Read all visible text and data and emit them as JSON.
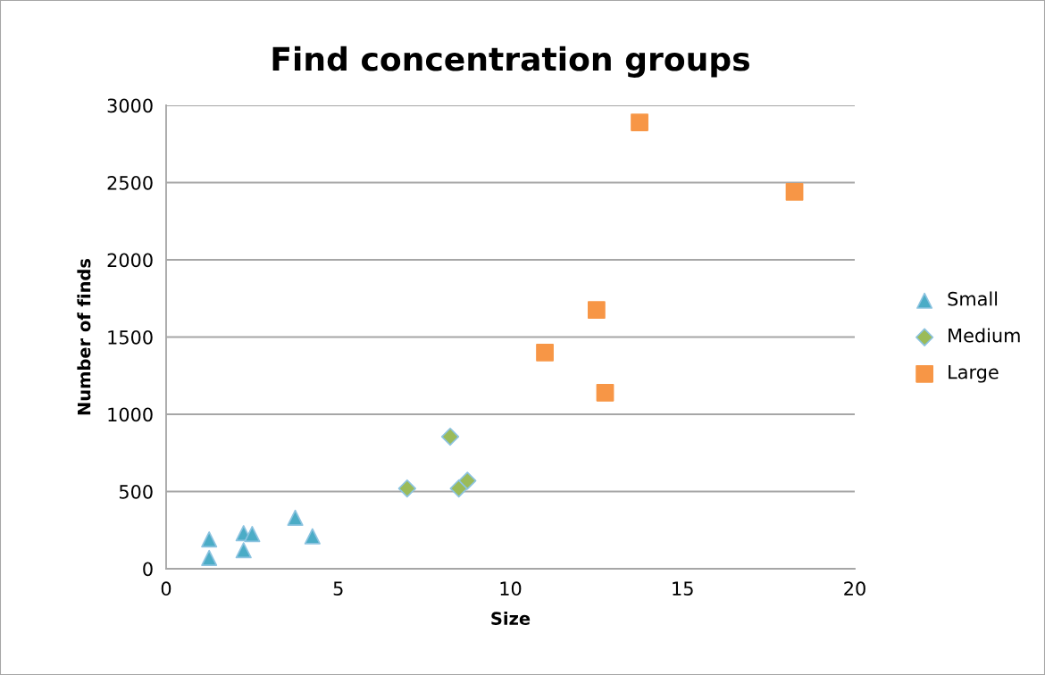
{
  "chart_data": {
    "type": "scatter",
    "title": "Find concentration groups",
    "xlabel": "Size",
    "ylabel": "Number of finds",
    "xlim": [
      0,
      20
    ],
    "xticks": [
      0,
      5,
      10,
      15,
      20
    ],
    "ylim": [
      0,
      3000
    ],
    "yticks": [
      0,
      500,
      1000,
      1500,
      2000,
      2500,
      3000
    ],
    "grid": "y",
    "legend": "right",
    "series": [
      {
        "name": "Small",
        "color": "#4bacc6",
        "marker": "triangle",
        "x": [
          1.25,
          1.25,
          2.25,
          2.25,
          2.5,
          3.75,
          4.25
        ],
        "values": [
          190,
          70,
          230,
          120,
          225,
          330,
          210
        ]
      },
      {
        "name": "Medium",
        "color": "#9bbb59",
        "marker": "diamond",
        "x": [
          7,
          8.25,
          8.5,
          8.75
        ],
        "values": [
          520,
          855,
          520,
          570
        ]
      },
      {
        "name": "Large",
        "color": "#f79646",
        "marker": "square",
        "x": [
          11,
          12.5,
          12.75,
          13.75,
          18.25
        ],
        "values": [
          1400,
          1675,
          1140,
          2890,
          2440
        ]
      }
    ]
  }
}
